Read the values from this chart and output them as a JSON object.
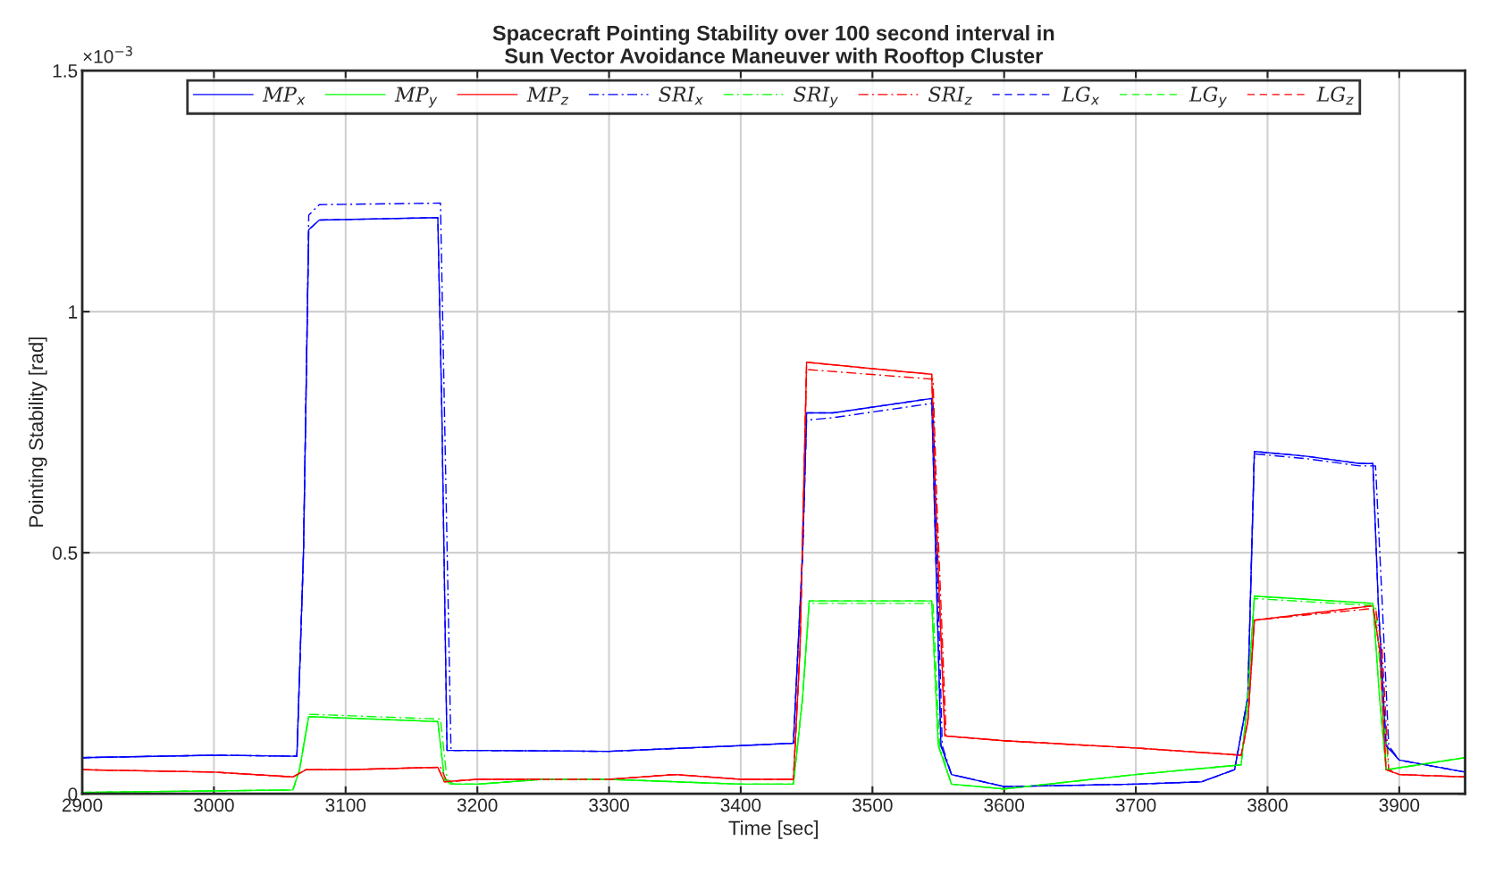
{
  "chart_data": {
    "type": "line",
    "title": "Spacecraft Pointing Stability over 100 second interval in\nSun Vector Avoidance Maneuver with Rooftop Cluster",
    "xlabel": "Time [sec]",
    "ylabel": "Pointing Stability [rad]",
    "annotations": [
      "×10$^{−3}$"
    ],
    "xlim": [
      2900,
      3950
    ],
    "xticks": [
      2900,
      3000,
      3100,
      3200,
      3300,
      3400,
      3500,
      3600,
      3700,
      3800,
      3900
    ],
    "ylim": [
      0,
      1.5
    ],
    "yticks": [
      0,
      0.5,
      1,
      1.5
    ],
    "grid": true,
    "legend": "top",
    "series": [
      {
        "name": "MP$_{x}$",
        "color": "#0000ff",
        "line_style": "solid",
        "x": [
          2900,
          3000,
          3063,
          3068,
          3072,
          3080,
          3170,
          3173,
          3177,
          3200,
          3300,
          3400,
          3440,
          3447,
          3450,
          3470,
          3545,
          3548,
          3552,
          3560,
          3600,
          3700,
          3750,
          3775,
          3785,
          3790,
          3830,
          3870,
          3880,
          3884,
          3890,
          3900,
          3950
        ],
        "values": [
          0.075,
          0.08,
          0.078,
          0.5,
          1.17,
          1.19,
          1.195,
          0.8,
          0.09,
          0.09,
          0.088,
          0.1,
          0.105,
          0.5,
          0.79,
          0.79,
          0.82,
          0.5,
          0.1,
          0.04,
          0.015,
          0.02,
          0.025,
          0.05,
          0.2,
          0.71,
          0.7,
          0.685,
          0.685,
          0.4,
          0.1,
          0.07,
          0.045
        ]
      },
      {
        "name": "MP$_{y}$",
        "color": "#00ff00",
        "line_style": "solid",
        "x": [
          2900,
          3060,
          3065,
          3072,
          3170,
          3175,
          3180,
          3200,
          3250,
          3300,
          3400,
          3440,
          3447,
          3452,
          3545,
          3550,
          3560,
          3600,
          3700,
          3780,
          3785,
          3790,
          3880,
          3885,
          3890,
          3950
        ],
        "values": [
          0.003,
          0.008,
          0.05,
          0.16,
          0.15,
          0.03,
          0.02,
          0.02,
          0.03,
          0.03,
          0.02,
          0.02,
          0.2,
          0.4,
          0.4,
          0.1,
          0.02,
          0.01,
          0.04,
          0.06,
          0.2,
          0.41,
          0.395,
          0.2,
          0.05,
          0.075
        ]
      },
      {
        "name": "MP$_{z}$",
        "color": "#ff0000",
        "line_style": "solid",
        "x": [
          2900,
          3000,
          3060,
          3070,
          3100,
          3170,
          3175,
          3200,
          3300,
          3350,
          3400,
          3440,
          3445,
          3450,
          3545,
          3548,
          3555,
          3600,
          3700,
          3780,
          3785,
          3790,
          3880,
          3885,
          3890,
          3900,
          3950
        ],
        "values": [
          0.05,
          0.045,
          0.035,
          0.05,
          0.05,
          0.055,
          0.025,
          0.03,
          0.03,
          0.04,
          0.03,
          0.03,
          0.3,
          0.895,
          0.87,
          0.6,
          0.12,
          0.11,
          0.095,
          0.08,
          0.15,
          0.36,
          0.39,
          0.3,
          0.05,
          0.04,
          0.035
        ]
      },
      {
        "name": "SRI$_{x}$",
        "color": "#0000ff",
        "line_style": "dashdot",
        "x": [
          2900,
          3000,
          3063,
          3068,
          3072,
          3080,
          3172,
          3175,
          3180,
          3200,
          3300,
          3400,
          3440,
          3447,
          3450,
          3470,
          3546,
          3549,
          3553,
          3560,
          3600,
          3700,
          3750,
          3775,
          3785,
          3790,
          3830,
          3870,
          3882,
          3887,
          3892,
          3900,
          3950
        ],
        "values": [
          0.075,
          0.08,
          0.078,
          0.5,
          1.2,
          1.222,
          1.225,
          0.8,
          0.09,
          0.09,
          0.088,
          0.1,
          0.105,
          0.5,
          0.775,
          0.78,
          0.81,
          0.5,
          0.1,
          0.04,
          0.015,
          0.02,
          0.025,
          0.05,
          0.2,
          0.705,
          0.695,
          0.68,
          0.68,
          0.4,
          0.1,
          0.07,
          0.045
        ]
      },
      {
        "name": "SRI$_{y}$",
        "color": "#00ff00",
        "line_style": "dashdot",
        "x": [
          2900,
          3060,
          3065,
          3072,
          3172,
          3177,
          3182,
          3200,
          3250,
          3300,
          3400,
          3440,
          3447,
          3452,
          3546,
          3551,
          3560,
          3600,
          3700,
          3780,
          3785,
          3790,
          3882,
          3887,
          3892,
          3950
        ],
        "values": [
          0.003,
          0.008,
          0.05,
          0.165,
          0.155,
          0.03,
          0.02,
          0.02,
          0.03,
          0.03,
          0.02,
          0.02,
          0.2,
          0.395,
          0.395,
          0.1,
          0.02,
          0.01,
          0.04,
          0.06,
          0.2,
          0.405,
          0.39,
          0.2,
          0.05,
          0.075
        ]
      },
      {
        "name": "SRI$_{z}$",
        "color": "#ff0000",
        "line_style": "dashdot",
        "x": [
          2900,
          3000,
          3060,
          3070,
          3100,
          3172,
          3177,
          3200,
          3300,
          3350,
          3400,
          3440,
          3445,
          3450,
          3546,
          3549,
          3556,
          3600,
          3700,
          3780,
          3785,
          3790,
          3882,
          3887,
          3892,
          3900,
          3950
        ],
        "values": [
          0.05,
          0.045,
          0.035,
          0.05,
          0.05,
          0.055,
          0.025,
          0.03,
          0.03,
          0.04,
          0.03,
          0.03,
          0.3,
          0.88,
          0.86,
          0.6,
          0.12,
          0.11,
          0.095,
          0.08,
          0.15,
          0.36,
          0.385,
          0.3,
          0.05,
          0.04,
          0.035
        ]
      },
      {
        "name": "LG$_{x}$",
        "color": "#0000ff",
        "line_style": "dashed",
        "x": [
          2900,
          3000,
          3063,
          3068,
          3072,
          3080,
          3170,
          3173,
          3177,
          3200,
          3300,
          3400,
          3440,
          3447,
          3450,
          3470,
          3545,
          3548,
          3552,
          3560,
          3600,
          3700,
          3750,
          3775,
          3785,
          3790,
          3830,
          3870,
          3880,
          3884,
          3890,
          3900,
          3950
        ],
        "values": [
          0.075,
          0.08,
          0.078,
          0.5,
          1.17,
          1.19,
          1.195,
          0.8,
          0.09,
          0.09,
          0.088,
          0.1,
          0.105,
          0.5,
          0.79,
          0.79,
          0.82,
          0.5,
          0.1,
          0.04,
          0.015,
          0.02,
          0.025,
          0.05,
          0.2,
          0.71,
          0.7,
          0.685,
          0.685,
          0.4,
          0.1,
          0.07,
          0.045
        ]
      },
      {
        "name": "LG$_{y}$",
        "color": "#00ff00",
        "line_style": "dashed",
        "x": [
          2900,
          3060,
          3065,
          3072,
          3170,
          3175,
          3180,
          3200,
          3250,
          3300,
          3400,
          3440,
          3447,
          3452,
          3545,
          3550,
          3560,
          3600,
          3700,
          3780,
          3785,
          3790,
          3880,
          3885,
          3890,
          3950
        ],
        "values": [
          0.003,
          0.008,
          0.05,
          0.16,
          0.15,
          0.03,
          0.02,
          0.02,
          0.03,
          0.03,
          0.02,
          0.02,
          0.2,
          0.4,
          0.4,
          0.1,
          0.02,
          0.01,
          0.04,
          0.06,
          0.2,
          0.41,
          0.395,
          0.2,
          0.05,
          0.075
        ]
      },
      {
        "name": "LG$_{z}$",
        "color": "#ff0000",
        "line_style": "dashed",
        "x": [
          2900,
          3000,
          3060,
          3070,
          3100,
          3170,
          3175,
          3200,
          3300,
          3350,
          3400,
          3440,
          3445,
          3450,
          3545,
          3548,
          3555,
          3600,
          3700,
          3780,
          3785,
          3790,
          3880,
          3885,
          3890,
          3900,
          3950
        ],
        "values": [
          0.05,
          0.045,
          0.035,
          0.05,
          0.05,
          0.055,
          0.025,
          0.03,
          0.03,
          0.04,
          0.03,
          0.03,
          0.3,
          0.895,
          0.87,
          0.6,
          0.12,
          0.11,
          0.095,
          0.08,
          0.15,
          0.36,
          0.39,
          0.3,
          0.05,
          0.04,
          0.035
        ]
      }
    ]
  }
}
